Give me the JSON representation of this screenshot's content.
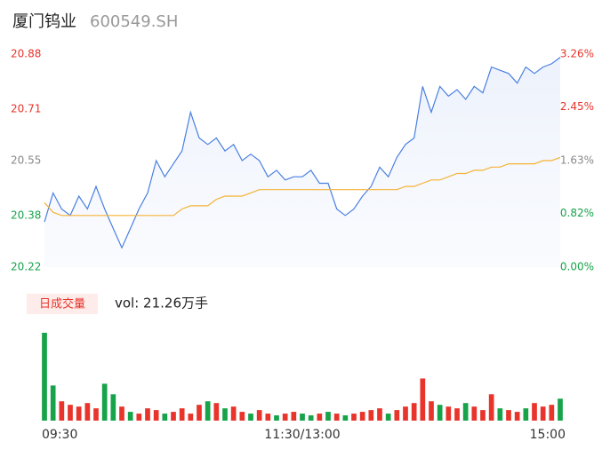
{
  "chart_data": {
    "type": "intraday",
    "title": "厦门钨业",
    "subtitle": "600549.SH",
    "volume_button": "日成交量",
    "volume_text": "vol: 21.26万手",
    "xlim": [
      0,
      240
    ],
    "xticks": [
      {
        "value": 0,
        "label": "09:30"
      },
      {
        "value": 120,
        "label": "11:30/13:00"
      },
      {
        "value": 240,
        "label": "15:00"
      }
    ],
    "ylim": [
      20.22,
      20.88
    ],
    "yticks": [
      20.22,
      20.38,
      20.55,
      20.71,
      20.88
    ],
    "ytick_colors": [
      "#16a34a",
      "#16a34a",
      "#888888",
      "#e8342b",
      "#e8342b"
    ],
    "y2lim": [
      0,
      3.26
    ],
    "y2ticks": [
      {
        "value": 0,
        "label": "0.00%"
      },
      {
        "value": 0.82,
        "label": "0.82%"
      },
      {
        "value": 1.63,
        "label": "1.63%"
      },
      {
        "value": 2.45,
        "label": "2.45%"
      },
      {
        "value": 3.26,
        "label": "3.26%"
      }
    ],
    "x": [
      0,
      4,
      8,
      12,
      16,
      20,
      24,
      28,
      32,
      36,
      40,
      44,
      48,
      52,
      56,
      60,
      64,
      68,
      72,
      76,
      80,
      84,
      88,
      92,
      96,
      100,
      104,
      108,
      112,
      116,
      120,
      124,
      128,
      132,
      136,
      140,
      144,
      148,
      152,
      156,
      160,
      164,
      168,
      172,
      176,
      180,
      184,
      188,
      192,
      196,
      200,
      204,
      208,
      212,
      216,
      220,
      224,
      228,
      232,
      236,
      240
    ],
    "series": [
      {
        "name": "price",
        "color": "#4a80e0",
        "values": [
          20.36,
          20.45,
          20.4,
          20.38,
          20.44,
          20.4,
          20.47,
          20.4,
          20.34,
          20.28,
          20.34,
          20.4,
          20.45,
          20.55,
          20.5,
          20.54,
          20.58,
          20.7,
          20.62,
          20.6,
          20.62,
          20.58,
          20.6,
          20.55,
          20.57,
          20.55,
          20.5,
          20.52,
          20.49,
          20.5,
          20.5,
          20.52,
          20.48,
          20.48,
          20.4,
          20.38,
          20.4,
          20.44,
          20.47,
          20.53,
          20.5,
          20.56,
          20.6,
          20.62,
          20.78,
          20.7,
          20.78,
          20.75,
          20.77,
          20.74,
          20.78,
          20.76,
          20.84,
          20.83,
          20.82,
          20.79,
          20.84,
          20.82,
          20.84,
          20.85,
          20.87
        ]
      },
      {
        "name": "average",
        "color": "#f5b335",
        "values": [
          20.42,
          20.39,
          20.38,
          20.38,
          20.38,
          20.38,
          20.38,
          20.38,
          20.38,
          20.38,
          20.38,
          20.38,
          20.38,
          20.38,
          20.38,
          20.38,
          20.4,
          20.41,
          20.41,
          20.41,
          20.43,
          20.44,
          20.44,
          20.44,
          20.45,
          20.46,
          20.46,
          20.46,
          20.46,
          20.46,
          20.46,
          20.46,
          20.46,
          20.46,
          20.46,
          20.46,
          20.46,
          20.46,
          20.46,
          20.46,
          20.46,
          20.46,
          20.47,
          20.47,
          20.48,
          20.49,
          20.49,
          20.5,
          20.51,
          20.51,
          20.52,
          20.52,
          20.53,
          20.53,
          20.54,
          20.54,
          20.54,
          20.54,
          20.55,
          20.55,
          20.56
        ]
      }
    ],
    "volume": {
      "values": [
        100,
        40,
        22,
        18,
        16,
        20,
        14,
        42,
        30,
        16,
        10,
        8,
        14,
        12,
        8,
        10,
        14,
        8,
        18,
        22,
        20,
        14,
        16,
        10,
        8,
        12,
        8,
        6,
        8,
        10,
        8,
        6,
        8,
        10,
        8,
        6,
        8,
        10,
        12,
        14,
        8,
        12,
        16,
        20,
        48,
        22,
        18,
        16,
        14,
        20,
        16,
        12,
        30,
        14,
        12,
        10,
        14,
        20,
        16,
        18,
        25
      ],
      "colors": [
        "#16a34a",
        "#16a34a",
        "#e8342b",
        "#e8342b",
        "#e8342b",
        "#e8342b",
        "#e8342b",
        "#16a34a",
        "#16a34a",
        "#e8342b",
        "#16a34a",
        "#e8342b",
        "#e8342b",
        "#e8342b",
        "#16a34a",
        "#e8342b",
        "#e8342b",
        "#e8342b",
        "#e8342b",
        "#16a34a",
        "#e8342b",
        "#16a34a",
        "#e8342b",
        "#e8342b",
        "#16a34a",
        "#e8342b",
        "#e8342b",
        "#16a34a",
        "#e8342b",
        "#e8342b",
        "#16a34a",
        "#16a34a",
        "#e8342b",
        "#16a34a",
        "#e8342b",
        "#16a34a",
        "#e8342b",
        "#e8342b",
        "#e8342b",
        "#e8342b",
        "#16a34a",
        "#e8342b",
        "#e8342b",
        "#e8342b",
        "#e8342b",
        "#e8342b",
        "#16a34a",
        "#e8342b",
        "#e8342b",
        "#16a34a",
        "#e8342b",
        "#e8342b",
        "#e8342b",
        "#16a34a",
        "#e8342b",
        "#e8342b",
        "#16a34a",
        "#e8342b",
        "#e8342b",
        "#e8342b",
        "#16a34a"
      ]
    }
  }
}
